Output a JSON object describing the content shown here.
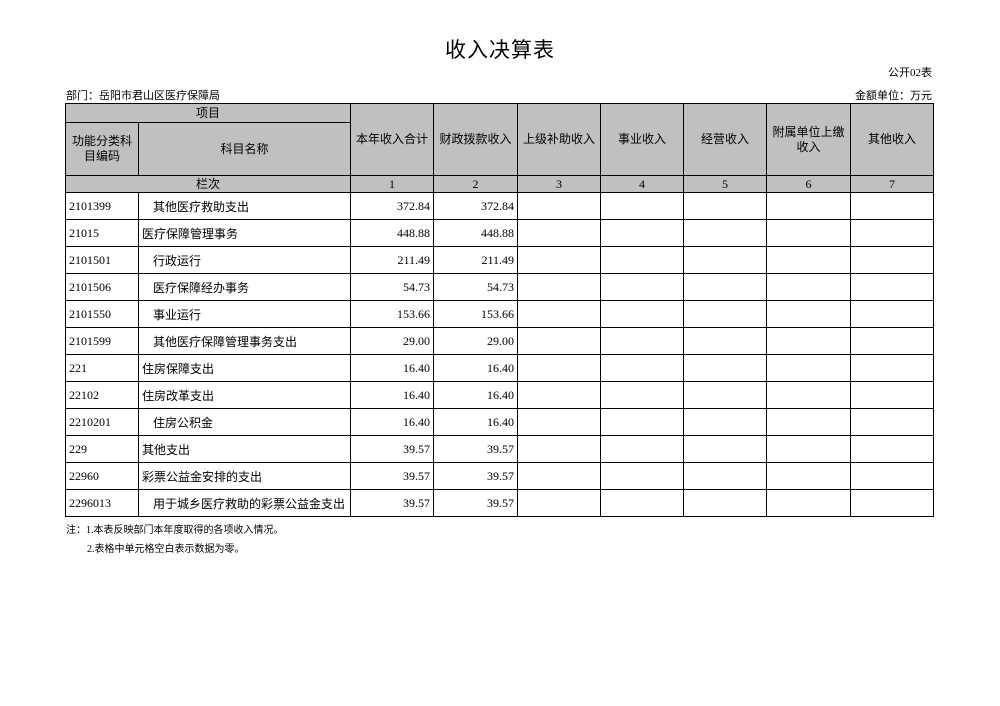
{
  "title": "收入决算表",
  "form_no": "公开02表",
  "department": "部门：岳阳市君山区医疗保障局",
  "unit": "金额单位：万元",
  "header": {
    "item": "项目",
    "code": "功能分类科目编码",
    "name": "科目名称",
    "columns": [
      "本年收入合计",
      "财政拨款收入",
      "上级补助收入",
      "事业收入",
      "经营收入",
      "附属单位上缴收入",
      "其他收入"
    ],
    "row_label": "栏次",
    "column_numbers": [
      "1",
      "2",
      "3",
      "4",
      "5",
      "6",
      "7"
    ]
  },
  "rows": [
    {
      "code": "2101399",
      "name": "其他医疗救助支出",
      "indent": true,
      "total": "372.84",
      "fiscal": "372.84"
    },
    {
      "code": "21015",
      "name": "医疗保障管理事务",
      "indent": false,
      "total": "448.88",
      "fiscal": "448.88"
    },
    {
      "code": "2101501",
      "name": "行政运行",
      "indent": true,
      "total": "211.49",
      "fiscal": "211.49"
    },
    {
      "code": "2101506",
      "name": "医疗保障经办事务",
      "indent": true,
      "total": "54.73",
      "fiscal": "54.73"
    },
    {
      "code": "2101550",
      "name": "事业运行",
      "indent": true,
      "total": "153.66",
      "fiscal": "153.66"
    },
    {
      "code": "2101599",
      "name": "其他医疗保障管理事务支出",
      "indent": true,
      "total": "29.00",
      "fiscal": "29.00"
    },
    {
      "code": "221",
      "name": "住房保障支出",
      "indent": false,
      "total": "16.40",
      "fiscal": "16.40"
    },
    {
      "code": "22102",
      "name": "住房改革支出",
      "indent": false,
      "total": "16.40",
      "fiscal": "16.40"
    },
    {
      "code": "2210201",
      "name": "住房公积金",
      "indent": true,
      "total": "16.40",
      "fiscal": "16.40"
    },
    {
      "code": "229",
      "name": "其他支出",
      "indent": false,
      "total": "39.57",
      "fiscal": "39.57"
    },
    {
      "code": "22960",
      "name": "彩票公益金安排的支出",
      "indent": false,
      "total": "39.57",
      "fiscal": "39.57"
    },
    {
      "code": "2296013",
      "name": "用于城乡医疗救助的彩票公益金支出",
      "indent": true,
      "total": "39.57",
      "fiscal": "39.57"
    }
  ],
  "notes": [
    "注：1.本表反映部门本年度取得的各项收入情况。",
    "2.表格中单元格空白表示数据为零。"
  ],
  "colors": {
    "header_bg": "#c0c0c0"
  }
}
